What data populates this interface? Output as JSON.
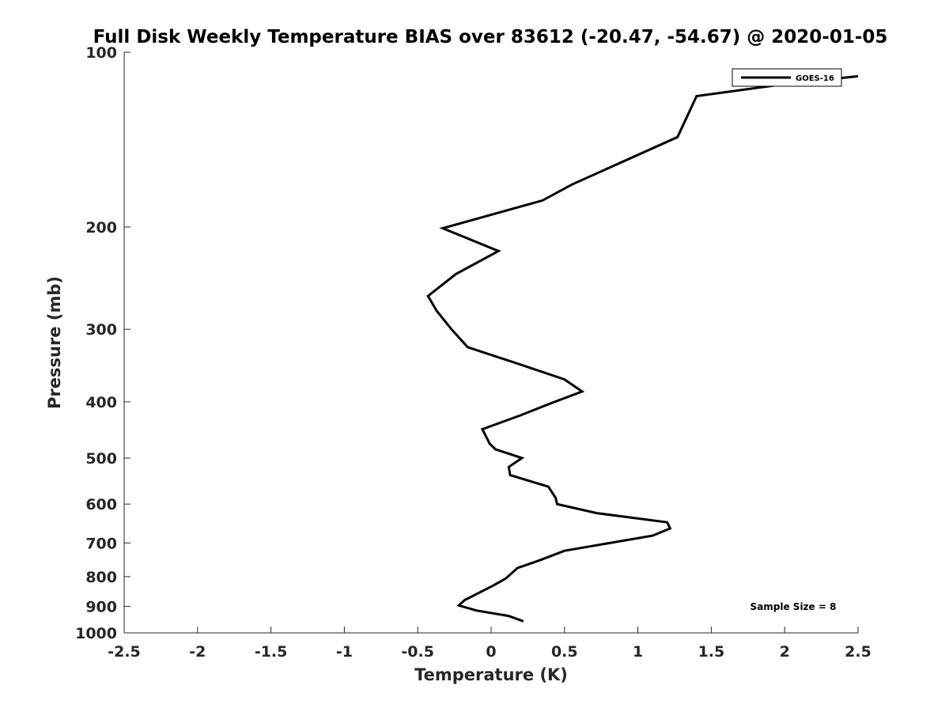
{
  "chart_data": {
    "type": "line",
    "title": "Full Disk Weekly Temperature BIAS over 83612 (-20.47, -54.67) @ 2020-01-05",
    "xlabel": "Temperature (K)",
    "ylabel": "Pressure (mb)",
    "xlim": [
      -2.5,
      2.5
    ],
    "ylim": [
      100,
      1000
    ],
    "y_scale": "log",
    "y_reversed": true,
    "x_ticks": [
      -2.5,
      -2,
      -1.5,
      -1,
      -0.5,
      0,
      0.5,
      1,
      1.5,
      2,
      2.5
    ],
    "x_tick_labels": [
      "-2.5",
      "-2",
      "-1.5",
      "-1",
      "-0.5",
      "0",
      "0.5",
      "1",
      "1.5",
      "2",
      "2.5"
    ],
    "y_ticks": [
      100,
      200,
      300,
      400,
      500,
      600,
      700,
      800,
      900,
      1000
    ],
    "y_tick_labels": [
      "100",
      "200",
      "300",
      "400",
      "500",
      "600",
      "700",
      "800",
      "900",
      "1000"
    ],
    "grid": false,
    "legend": {
      "position": "top-right"
    },
    "annotation": "Sample Size = 8",
    "series": [
      {
        "name": "GOES-16",
        "color": "#000000",
        "points": [
          {
            "x": 2.5,
            "y": 110
          },
          {
            "x": 2.05,
            "y": 113
          },
          {
            "x": 1.4,
            "y": 119
          },
          {
            "x": 1.27,
            "y": 140
          },
          {
            "x": 0.55,
            "y": 169
          },
          {
            "x": 0.35,
            "y": 180
          },
          {
            "x": -0.33,
            "y": 201
          },
          {
            "x": 0.05,
            "y": 220
          },
          {
            "x": -0.24,
            "y": 241
          },
          {
            "x": -0.43,
            "y": 263
          },
          {
            "x": -0.37,
            "y": 279
          },
          {
            "x": -0.27,
            "y": 300
          },
          {
            "x": -0.16,
            "y": 322
          },
          {
            "x": 0.2,
            "y": 345
          },
          {
            "x": 0.5,
            "y": 366
          },
          {
            "x": 0.62,
            "y": 384
          },
          {
            "x": 0.4,
            "y": 403
          },
          {
            "x": 0.2,
            "y": 422
          },
          {
            "x": -0.06,
            "y": 446
          },
          {
            "x": -0.03,
            "y": 461
          },
          {
            "x": -0.01,
            "y": 472
          },
          {
            "x": 0.03,
            "y": 483
          },
          {
            "x": 0.21,
            "y": 500
          },
          {
            "x": 0.12,
            "y": 518
          },
          {
            "x": 0.13,
            "y": 535
          },
          {
            "x": 0.39,
            "y": 560
          },
          {
            "x": 0.44,
            "y": 586
          },
          {
            "x": 0.45,
            "y": 600
          },
          {
            "x": 0.72,
            "y": 622
          },
          {
            "x": 1.2,
            "y": 645
          },
          {
            "x": 1.22,
            "y": 661
          },
          {
            "x": 1.1,
            "y": 680
          },
          {
            "x": 0.5,
            "y": 722
          },
          {
            "x": 0.33,
            "y": 750
          },
          {
            "x": 0.18,
            "y": 773
          },
          {
            "x": 0.1,
            "y": 806
          },
          {
            "x": 0.01,
            "y": 830
          },
          {
            "x": -0.18,
            "y": 878
          },
          {
            "x": -0.22,
            "y": 897
          },
          {
            "x": -0.1,
            "y": 915
          },
          {
            "x": 0.12,
            "y": 935
          },
          {
            "x": 0.22,
            "y": 955
          }
        ]
      }
    ]
  }
}
